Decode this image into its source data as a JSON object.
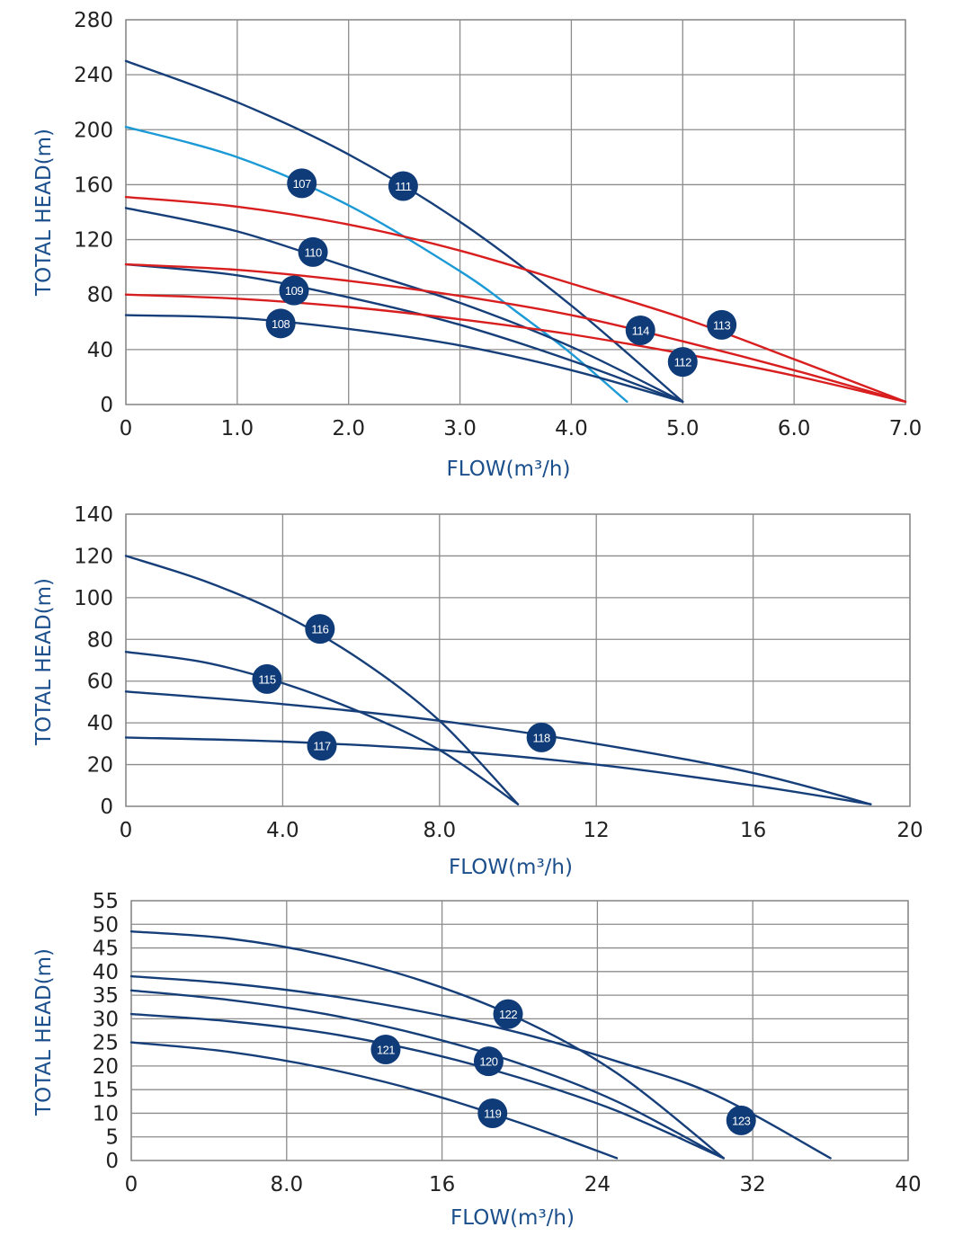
{
  "chart_data": [
    {
      "type": "line",
      "xlabel": "FLOW(m³/h)",
      "ylabel": "TOTAL HEAD(m)",
      "xlim": [
        0,
        7
      ],
      "ylim": [
        0,
        280
      ],
      "xticks": [
        0,
        1,
        2,
        3,
        4,
        5,
        6,
        7
      ],
      "xtick_labels": [
        "0",
        "1.0",
        "2.0",
        "3.0",
        "4.0",
        "5.0",
        "6.0",
        "7.0"
      ],
      "yticks": [
        0,
        40,
        80,
        120,
        160,
        200,
        240,
        280
      ],
      "ytick_labels": [
        "0",
        "40",
        "80",
        "120",
        "160",
        "200",
        "240",
        "280"
      ],
      "grid": true,
      "series": [
        {
          "name": "107",
          "color": "#1b9ad6",
          "x": [
            0,
            1.0,
            2.0,
            3.0,
            3.5,
            4.0,
            4.5
          ],
          "y": [
            202,
            180,
            145,
            97,
            68,
            37,
            2
          ],
          "label_at": [
            1.58,
            161
          ]
        },
        {
          "name": "108",
          "color": "#163f7a",
          "x": [
            0,
            1.0,
            2.0,
            3.0,
            4.0,
            5.0
          ],
          "y": [
            65,
            63,
            55,
            43,
            25,
            2
          ],
          "label_at": [
            1.39,
            59
          ]
        },
        {
          "name": "109",
          "color": "#163f7a",
          "x": [
            0,
            1.0,
            2.0,
            3.0,
            4.0,
            5.0
          ],
          "y": [
            102,
            94,
            78,
            58,
            32,
            2
          ],
          "label_at": [
            1.51,
            83
          ]
        },
        {
          "name": "110",
          "color": "#163f7a",
          "x": [
            0,
            1.0,
            2.0,
            3.0,
            4.0,
            5.0
          ],
          "y": [
            143,
            126,
            100,
            74,
            42,
            2
          ],
          "label_at": [
            1.68,
            111
          ]
        },
        {
          "name": "111",
          "color": "#163f7a",
          "x": [
            0,
            1.0,
            2.0,
            3.0,
            4.0,
            5.0
          ],
          "y": [
            250,
            220,
            182,
            133,
            72,
            2
          ],
          "label_at": [
            2.49,
            159
          ]
        },
        {
          "name": "112",
          "color": "#d81e1e",
          "x": [
            0,
            1.0,
            2.0,
            3.0,
            4.0,
            5.0,
            6.0,
            7.0
          ],
          "y": [
            80,
            77,
            71,
            62,
            51,
            37,
            21,
            2
          ],
          "label_at": [
            5.0,
            31
          ]
        },
        {
          "name": "114",
          "color": "#d81e1e",
          "x": [
            0,
            1.0,
            2.0,
            3.0,
            4.0,
            5.0,
            6.0,
            7.0
          ],
          "y": [
            102,
            98,
            90,
            79,
            65,
            46,
            25,
            2
          ],
          "label_at": [
            4.62,
            54
          ]
        },
        {
          "name": "113",
          "color": "#d81e1e",
          "x": [
            0,
            1.0,
            2.0,
            3.0,
            4.0,
            5.0,
            6.0,
            7.0
          ],
          "y": [
            151,
            144,
            131,
            112,
            88,
            63,
            33,
            2
          ],
          "label_at": [
            5.35,
            58
          ]
        }
      ]
    },
    {
      "type": "line",
      "xlabel": "FLOW(m³/h)",
      "ylabel": "TOTAL HEAD(m)",
      "xlim": [
        0,
        20
      ],
      "ylim": [
        0,
        140
      ],
      "xticks": [
        0,
        4,
        8,
        12,
        16,
        20
      ],
      "xtick_labels": [
        "0",
        "4.0",
        "8.0",
        "12",
        "16",
        "20"
      ],
      "yticks": [
        0,
        20,
        40,
        60,
        80,
        100,
        120,
        140
      ],
      "ytick_labels": [
        "0",
        "20",
        "40",
        "60",
        "80",
        "100",
        "120",
        "140"
      ],
      "grid": true,
      "series": [
        {
          "name": "115",
          "color": "#163f7a",
          "x": [
            0,
            2,
            4,
            6,
            8,
            10
          ],
          "y": [
            74,
            69,
            59,
            45,
            27,
            1
          ],
          "label_at": [
            3.6,
            61
          ]
        },
        {
          "name": "116",
          "color": "#163f7a",
          "x": [
            0,
            2,
            4,
            6,
            8,
            10
          ],
          "y": [
            120,
            108,
            92,
            70,
            41,
            1
          ],
          "label_at": [
            4.95,
            85
          ]
        },
        {
          "name": "117",
          "color": "#163f7a",
          "x": [
            0,
            4,
            8,
            12,
            16,
            19
          ],
          "y": [
            33,
            31,
            27,
            20,
            10,
            1
          ],
          "label_at": [
            5.0,
            29
          ]
        },
        {
          "name": "118",
          "color": "#163f7a",
          "x": [
            0,
            4,
            8,
            12,
            16,
            19
          ],
          "y": [
            55,
            49,
            41,
            30,
            16,
            1
          ],
          "label_at": [
            10.6,
            33
          ]
        }
      ]
    },
    {
      "type": "line",
      "xlabel": "FLOW(m³/h)",
      "ylabel": "TOTAL HEAD(m)",
      "xlim": [
        0,
        40
      ],
      "ylim": [
        0,
        55
      ],
      "xticks": [
        0,
        8,
        16,
        24,
        32,
        40
      ],
      "xtick_labels": [
        "0",
        "8.0",
        "16",
        "24",
        "32",
        "40"
      ],
      "yticks": [
        0,
        5,
        10,
        15,
        20,
        25,
        30,
        35,
        40,
        45,
        50,
        55
      ],
      "ytick_labels": [
        "0",
        "5",
        "10",
        "15",
        "20",
        "25",
        "30",
        "35",
        "40",
        "45",
        "50",
        "55"
      ],
      "grid": true,
      "series": [
        {
          "name": "119",
          "color": "#163f7a",
          "x": [
            0,
            5,
            10,
            15,
            20,
            25
          ],
          "y": [
            25,
            23,
            19.5,
            14.5,
            8,
            0.5
          ],
          "label_at": [
            18.6,
            10
          ]
        },
        {
          "name": "120",
          "color": "#163f7a",
          "x": [
            0,
            5,
            10,
            15,
            20,
            25,
            30.5
          ],
          "y": [
            31,
            29.5,
            27,
            23,
            17.5,
            10.5,
            0.5
          ],
          "label_at": [
            18.4,
            21
          ]
        },
        {
          "name": "121",
          "color": "#163f7a",
          "x": [
            0,
            5,
            10,
            15,
            20,
            25,
            30.5
          ],
          "y": [
            36,
            34,
            31,
            26.5,
            20.5,
            12.5,
            0.5
          ],
          "label_at": [
            13.1,
            23.5
          ]
        },
        {
          "name": "122",
          "color": "#163f7a",
          "x": [
            0,
            5,
            10,
            15,
            20,
            25,
            30.5
          ],
          "y": [
            48.5,
            47,
            43.5,
            38,
            30,
            18.5,
            0.5
          ],
          "label_at": [
            19.4,
            31
          ]
        },
        {
          "name": "123",
          "color": "#163f7a",
          "x": [
            0,
            5,
            10,
            15,
            20,
            25,
            30,
            36
          ],
          "y": [
            39,
            37.5,
            35,
            31.5,
            27,
            21,
            14,
            0.5
          ],
          "label_at": [
            31.4,
            8.5
          ]
        }
      ]
    }
  ],
  "style": {
    "grid_color": "#8c8c8c",
    "axis_title_color": "#1b4f8c",
    "tick_color": "#222222",
    "badge_color": "#0f3b78",
    "badge_text_color": "#ffffff"
  }
}
